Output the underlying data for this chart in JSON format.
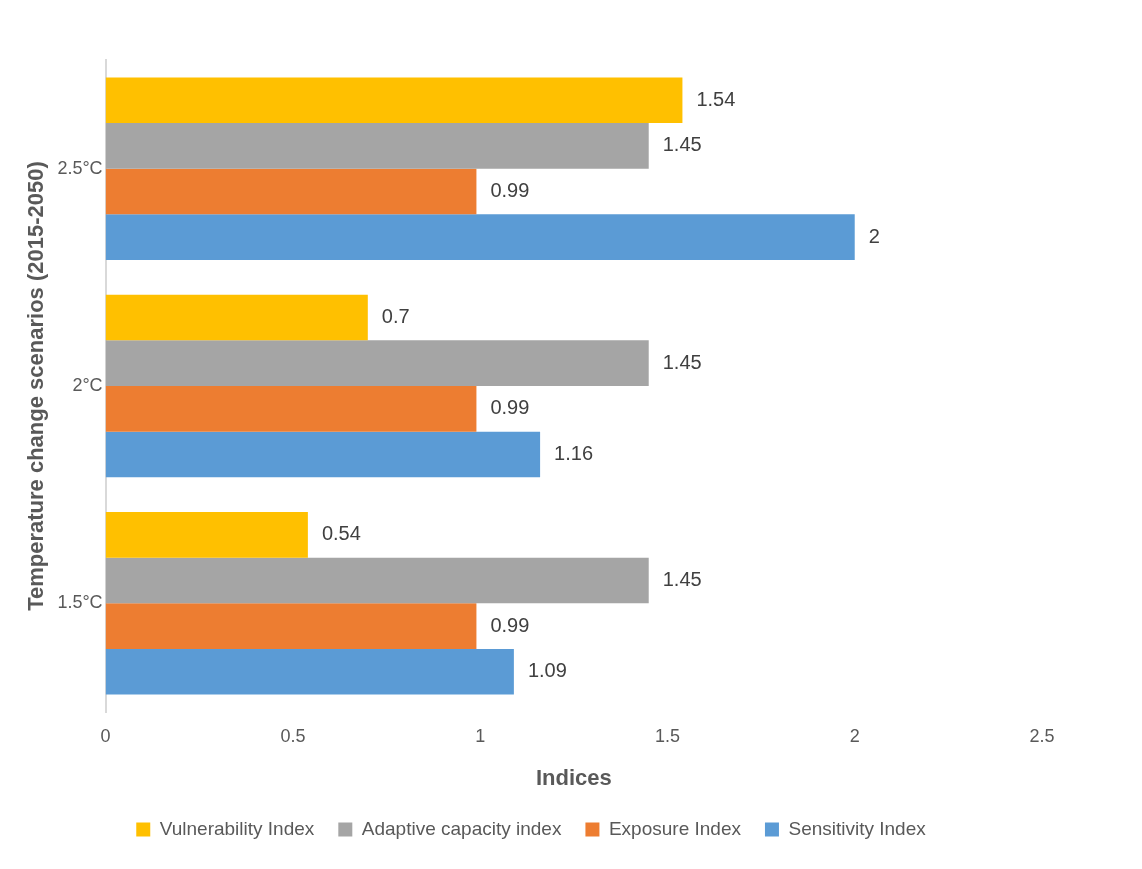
{
  "chart_data": {
    "type": "bar",
    "orientation": "horizontal",
    "categories": [
      "2.5°C",
      "2°C",
      "1.5°C"
    ],
    "series": [
      {
        "name": "Vulnerability Index",
        "color": "#ffc000",
        "values": [
          1.54,
          0.7,
          0.54
        ]
      },
      {
        "name": "Adaptive capacity index",
        "color": "#a5a5a5",
        "values": [
          1.45,
          1.45,
          1.45
        ]
      },
      {
        "name": "Exposure Index",
        "color": "#ed7d31",
        "values": [
          0.99,
          0.99,
          0.99
        ]
      },
      {
        "name": "Sensitivity Index",
        "color": "#5b9bd5",
        "values": [
          2,
          1.16,
          1.09
        ]
      }
    ],
    "xlabel": "Indices",
    "ylabel": "Temperature change scenarios (2015-2050)",
    "xlim": [
      0,
      2.5
    ],
    "xticks": [
      0,
      0.5,
      1,
      1.5,
      2,
      2.5
    ],
    "data_labels": true,
    "grid": false,
    "legend": "bottom"
  }
}
